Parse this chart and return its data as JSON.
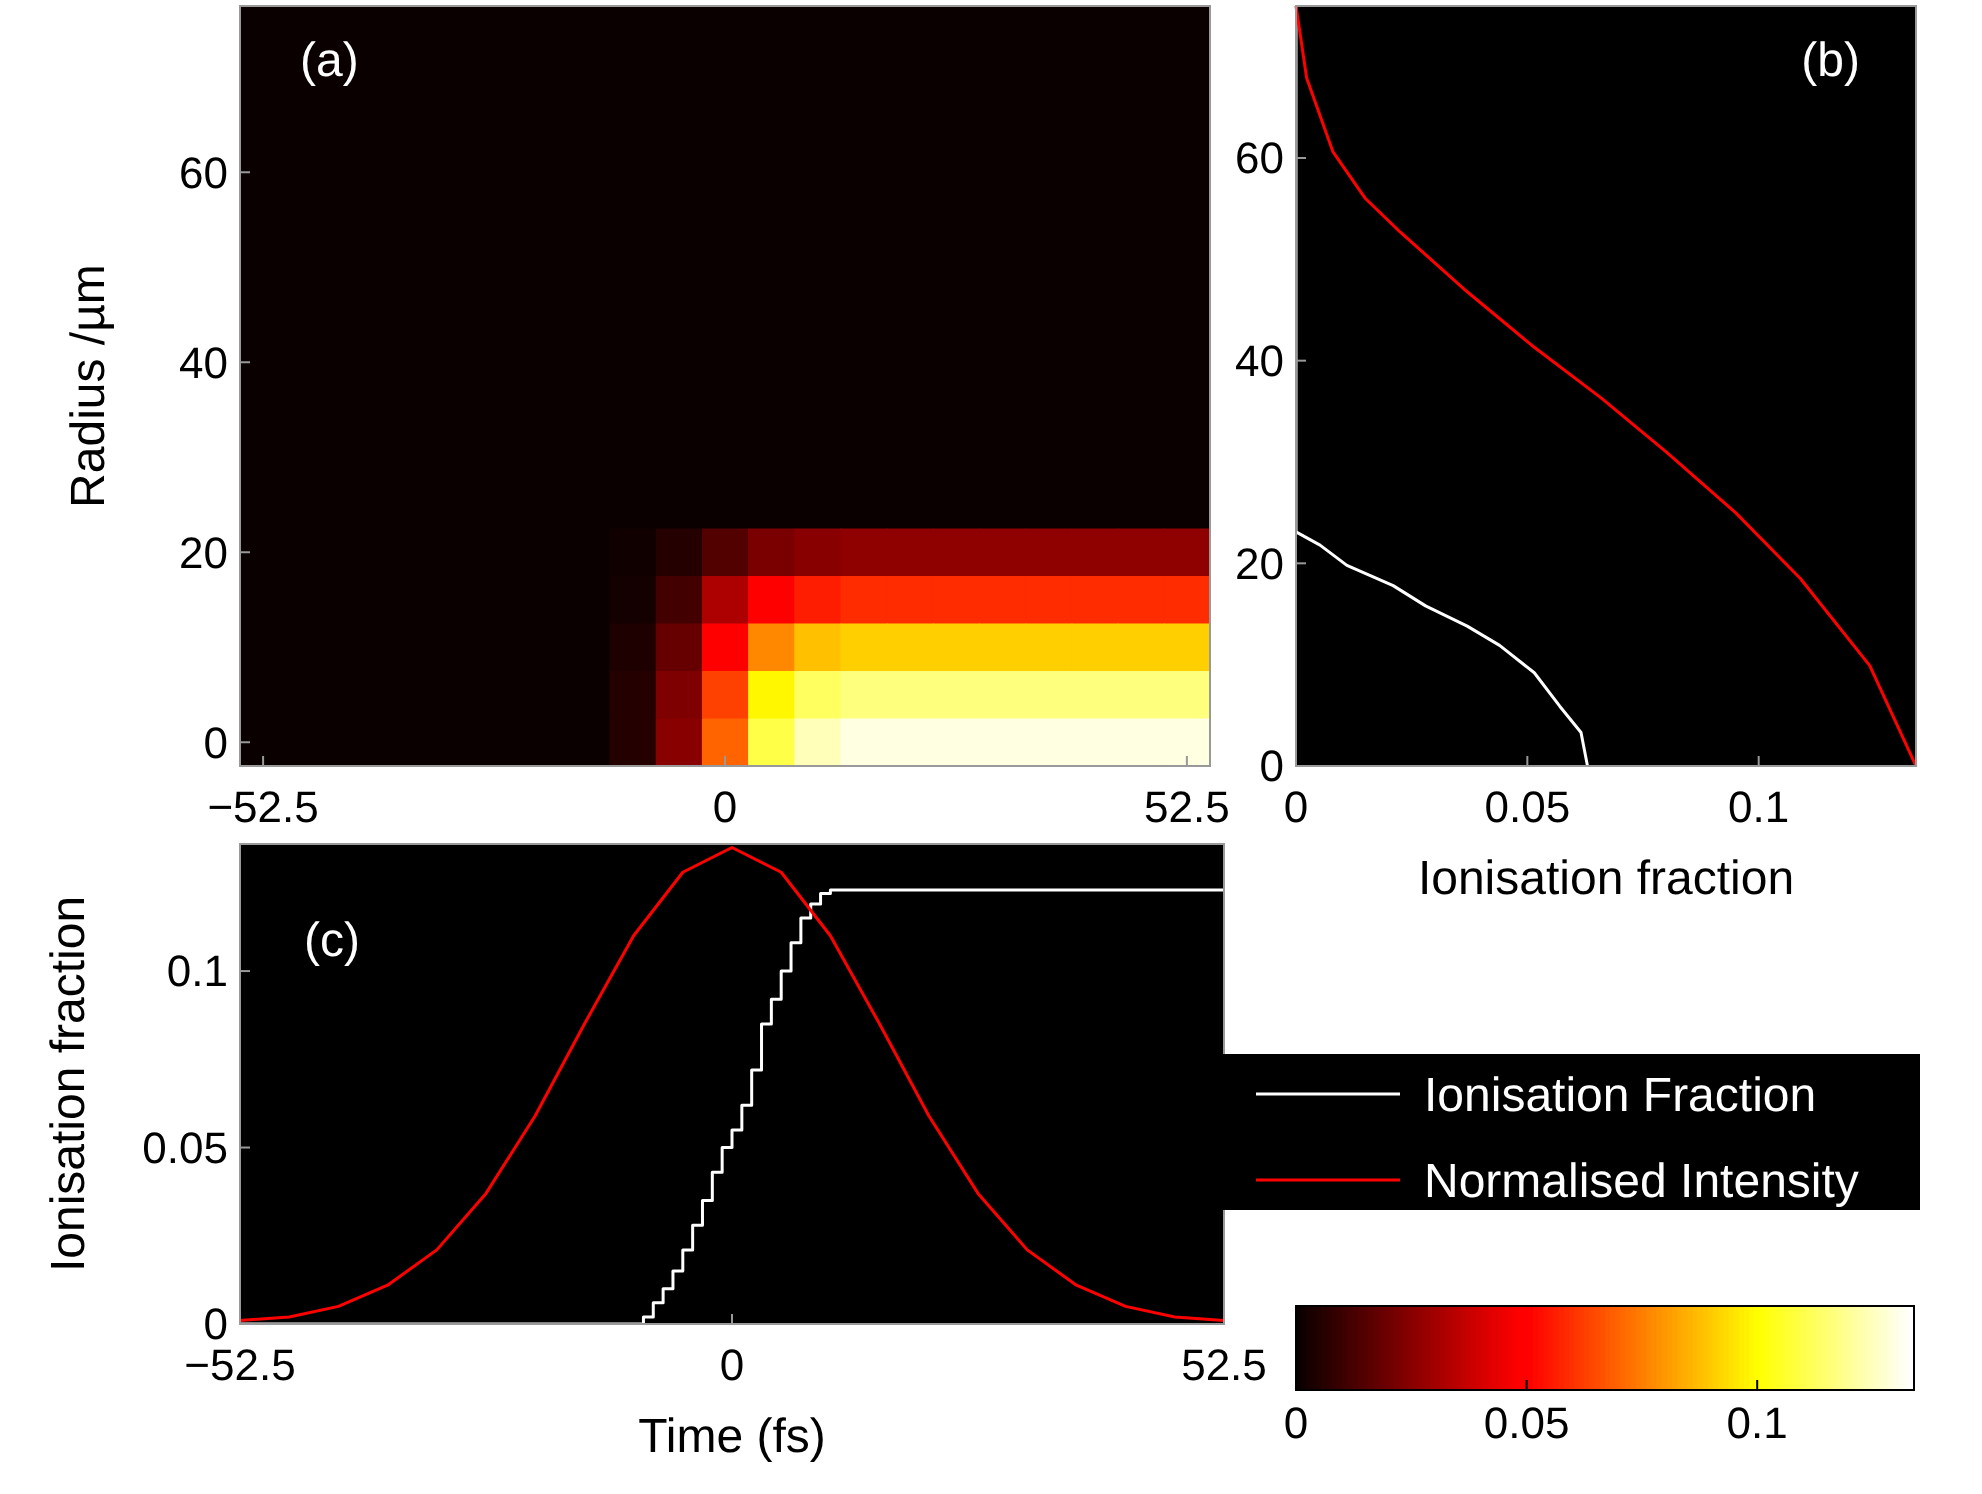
{
  "chart_data": [
    {
      "type": "heatmap",
      "ylabel": "Radius /µm",
      "annotations": [
        "(a)"
      ],
      "categories": [
        "−52.5",
        null,
        null,
        null,
        null,
        null,
        null,
        null,
        null,
        null,
        "0",
        null,
        null,
        null,
        null,
        null,
        null,
        null,
        null,
        null,
        "52.5"
      ],
      "y_categories": [
        null,
        null,
        null,
        "60",
        null,
        null,
        null,
        "40",
        null,
        null,
        null,
        "20",
        null,
        null,
        null,
        "0"
      ],
      "clim": [
        0,
        0.134
      ],
      "cticks": [
        0,
        0.05,
        0.1
      ],
      "cells": [
        [
          0,
          0,
          0,
          0,
          0,
          0,
          0,
          0,
          0,
          0,
          0,
          0,
          0,
          0,
          0,
          0,
          0,
          0,
          0,
          0,
          0
        ],
        [
          0,
          0,
          0,
          0,
          0,
          0,
          0,
          0,
          0,
          0,
          0,
          0,
          0,
          0,
          0,
          0,
          0,
          0,
          0,
          0,
          0
        ],
        [
          0,
          0,
          0,
          0,
          0,
          0,
          0,
          0,
          0,
          0,
          0,
          0,
          0,
          0,
          0,
          0,
          0,
          0,
          0,
          0,
          0
        ],
        [
          0,
          0,
          0,
          0,
          0,
          0,
          0,
          0,
          0,
          0,
          0,
          0,
          0,
          0,
          0,
          0,
          0,
          0,
          0,
          0,
          0
        ],
        [
          0,
          0,
          0,
          0,
          0,
          0,
          0,
          0,
          0,
          0,
          0,
          0,
          0,
          0,
          0,
          0,
          0,
          0,
          0,
          0,
          0
        ],
        [
          0,
          0,
          0,
          0,
          0,
          0,
          0,
          0,
          0,
          0,
          0,
          0,
          0,
          0,
          0,
          0,
          0,
          0,
          0,
          0,
          0
        ],
        [
          0,
          0,
          0,
          0,
          0,
          0,
          0,
          0,
          0,
          0,
          0,
          0,
          0,
          0,
          0,
          0,
          0,
          0,
          0,
          0,
          0
        ],
        [
          0,
          0,
          0,
          0,
          0,
          0,
          0,
          0,
          0,
          0,
          0,
          0,
          0,
          0,
          0,
          0,
          0,
          0,
          0,
          0,
          0
        ],
        [
          0,
          0,
          0,
          0,
          0,
          0,
          0,
          0,
          0,
          0,
          0,
          0,
          0,
          0,
          0,
          0,
          0,
          0,
          0,
          0,
          0
        ],
        [
          0,
          0,
          0,
          0,
          0,
          0,
          0,
          0,
          0,
          0,
          0,
          0,
          0,
          0,
          0,
          0,
          0,
          0,
          0,
          0,
          0
        ],
        [
          0,
          0,
          0,
          0,
          0,
          0,
          0,
          0,
          0,
          0,
          0,
          0,
          0,
          0,
          0,
          0,
          0,
          0,
          0,
          0,
          0
        ],
        [
          0,
          0,
          0,
          0,
          0,
          0,
          0,
          0,
          0.001,
          0.005,
          0.014,
          0.022,
          0.025,
          0.026,
          0.026,
          0.026,
          0.026,
          0.026,
          0.026,
          0.026,
          0.026
        ],
        [
          0,
          0,
          0,
          0,
          0,
          0,
          0,
          0,
          0.002,
          0.011,
          0.032,
          0.05,
          0.056,
          0.059,
          0.059,
          0.059,
          0.059,
          0.059,
          0.059,
          0.059,
          0.059
        ],
        [
          0,
          0,
          0,
          0,
          0,
          0,
          0,
          0,
          0.004,
          0.018,
          0.049,
          0.077,
          0.088,
          0.091,
          0.091,
          0.091,
          0.091,
          0.091,
          0.091,
          0.091,
          0.091
        ],
        [
          0,
          0,
          0,
          0,
          0,
          0,
          0,
          0,
          0.005,
          0.023,
          0.063,
          0.099,
          0.113,
          0.117,
          0.117,
          0.117,
          0.117,
          0.117,
          0.117,
          0.117,
          0.117
        ],
        [
          0,
          0,
          0,
          0,
          0,
          0,
          0,
          0,
          0.005,
          0.025,
          0.07,
          0.11,
          0.125,
          0.13,
          0.13,
          0.13,
          0.13,
          0.13,
          0.13,
          0.13,
          0.13
        ]
      ]
    },
    {
      "type": "line",
      "xlabel": "Ionisation fraction",
      "annotations": [
        "(b)"
      ],
      "xlim": [
        0,
        0.134
      ],
      "xticks": [
        0,
        0.05,
        0.1
      ],
      "ylim": [
        0,
        75
      ],
      "yticks": [
        0,
        20,
        40,
        60
      ],
      "series": [
        {
          "color": "#ffffff",
          "x": [
            0.063,
            0.0616,
            0.057,
            0.0515,
            0.044,
            0.037,
            0.028,
            0.021,
            0.011,
            0.0052,
            0,
            0
          ],
          "values": [
            0,
            3.3,
            5.9,
            9.2,
            11.9,
            13.8,
            15.8,
            17.8,
            19.8,
            21.8,
            23.1,
            75
          ]
        },
        {
          "color": "#ff0000",
          "x": [
            0.134,
            0.124,
            0.109,
            0.095,
            0.08,
            0.066,
            0.051,
            0.037,
            0.0225,
            0.015,
            0.008,
            0.0023,
            0
          ],
          "values": [
            0,
            9.9,
            18.5,
            25,
            31,
            36.3,
            41.5,
            46.8,
            52.7,
            56,
            60.6,
            67.9,
            75
          ]
        }
      ]
    },
    {
      "type": "line",
      "xlabel": "Time (fs)",
      "ylabel": "Ionisation fraction",
      "annotations": [
        "(c)"
      ],
      "legend": "right",
      "xlim": [
        -52.5,
        52.5
      ],
      "xticks": [
        {
          "value": -52.5,
          "label": "−52.5"
        },
        0,
        52.5
      ],
      "ylim": [
        0,
        0.136
      ],
      "yticks": [
        0,
        0.05,
        0.1
      ],
      "series": [
        {
          "name": "Ionisation Fraction",
          "type": "step",
          "color": "#ffffff",
          "x": [
            -52.5,
            -10.5,
            -9.45,
            -8.4,
            -7.35,
            -6.3,
            -5.25,
            -4.2,
            -3.15,
            -2.1,
            -1.05,
            0,
            1.05,
            2.1,
            3.15,
            4.2,
            5.25,
            6.3,
            7.35,
            8.4,
            9.45,
            10.5,
            52.5
          ],
          "values": [
            0,
            0,
            0.002,
            0.006,
            0.01,
            0.015,
            0.021,
            0.028,
            0.035,
            0.043,
            0.05,
            0.055,
            0.062,
            0.072,
            0.085,
            0.092,
            0.1,
            0.108,
            0.115,
            0.119,
            0.122,
            0.123,
            0.123
          ]
        },
        {
          "name": "Normalised Intensity",
          "color": "#ff0000",
          "x": [
            -52.5,
            -47.25,
            -42,
            -36.75,
            -31.5,
            -26.25,
            -21,
            -15.75,
            -10.5,
            -5.25,
            0,
            5.25,
            10.5,
            15.75,
            21,
            26.25,
            31.5,
            36.75,
            42,
            47.25,
            52.5
          ],
          "values": [
            0.001,
            0.002,
            0.005,
            0.011,
            0.021,
            0.037,
            0.059,
            0.085,
            0.11,
            0.128,
            0.135,
            0.128,
            0.11,
            0.085,
            0.059,
            0.037,
            0.021,
            0.011,
            0.005,
            0.002,
            0.001
          ]
        }
      ]
    }
  ]
}
